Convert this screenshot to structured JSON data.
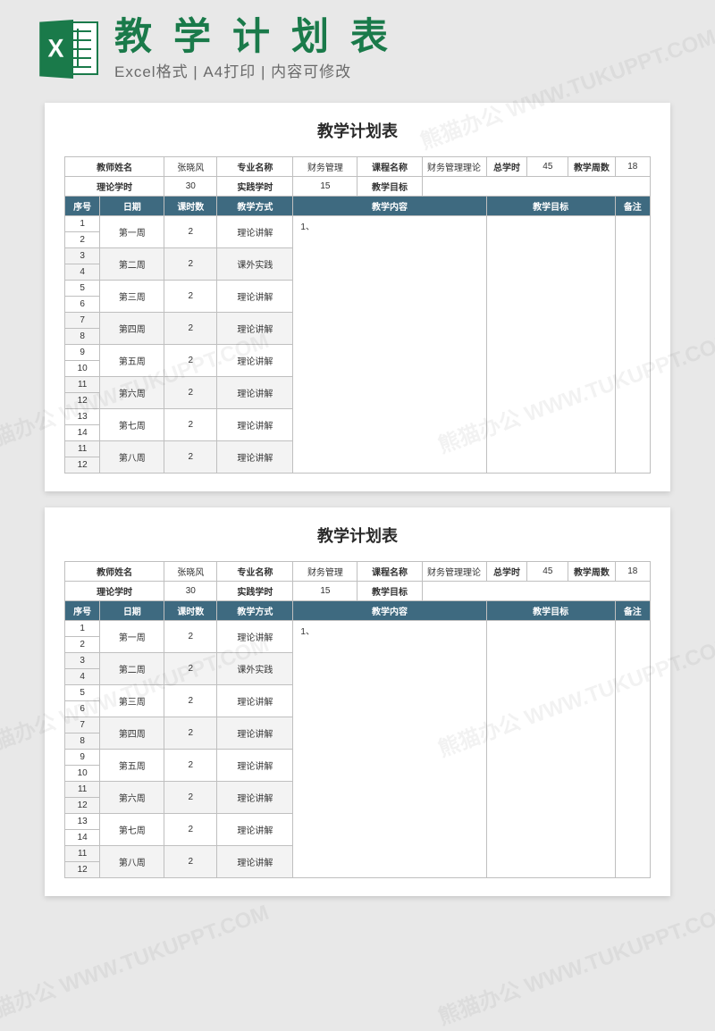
{
  "banner": {
    "title": "教学计划表",
    "subtitle": "Excel格式 | A4打印 | 内容可修改",
    "icon_letter": "X"
  },
  "colors": {
    "brand_green": "#1a7a4a",
    "header_blue": "#3e6a80",
    "page_bg": "#e8e8e8",
    "border": "#bfbfbf",
    "alt_row": "#f3f3f3",
    "text": "#333333",
    "subtext": "#6a6a6a"
  },
  "document": {
    "title": "教学计划表",
    "info_labels": {
      "teacher": "教师姓名",
      "major": "专业名称",
      "course": "课程名称",
      "total_hours": "总学时",
      "weeks": "教学周数",
      "theory_hours": "理论学时",
      "practice_hours": "实践学时",
      "teach_goal": "教学目标"
    },
    "info_values": {
      "teacher": "张晓风",
      "major": "财务管理",
      "course": "财务管理理论",
      "total_hours": "45",
      "weeks": "18",
      "theory_hours": "30",
      "practice_hours": "15"
    },
    "columns": {
      "seq": "序号",
      "date": "日期",
      "hours": "课时数",
      "method": "教学方式",
      "content": "教学内容",
      "goal": "教学目标",
      "remark": "备注"
    },
    "content_placeholder": "1、",
    "rows": [
      {
        "seq_a": "1",
        "seq_b": "2",
        "date": "第一周",
        "hours": "2",
        "method": "理论讲解"
      },
      {
        "seq_a": "3",
        "seq_b": "4",
        "date": "第二周",
        "hours": "2",
        "method": "课外实践"
      },
      {
        "seq_a": "5",
        "seq_b": "6",
        "date": "第三周",
        "hours": "2",
        "method": "理论讲解"
      },
      {
        "seq_a": "7",
        "seq_b": "8",
        "date": "第四周",
        "hours": "2",
        "method": "理论讲解"
      },
      {
        "seq_a": "9",
        "seq_b": "10",
        "date": "第五周",
        "hours": "2",
        "method": "理论讲解"
      },
      {
        "seq_a": "11",
        "seq_b": "12",
        "date": "第六周",
        "hours": "2",
        "method": "理论讲解"
      },
      {
        "seq_a": "13",
        "seq_b": "14",
        "date": "第七周",
        "hours": "2",
        "method": "理论讲解"
      },
      {
        "seq_a": "11",
        "seq_b": "12",
        "date": "第八周",
        "hours": "2",
        "method": "理论讲解"
      }
    ]
  },
  "watermark_text": "熊猫办公 WWW.TUKUPPT.COM"
}
